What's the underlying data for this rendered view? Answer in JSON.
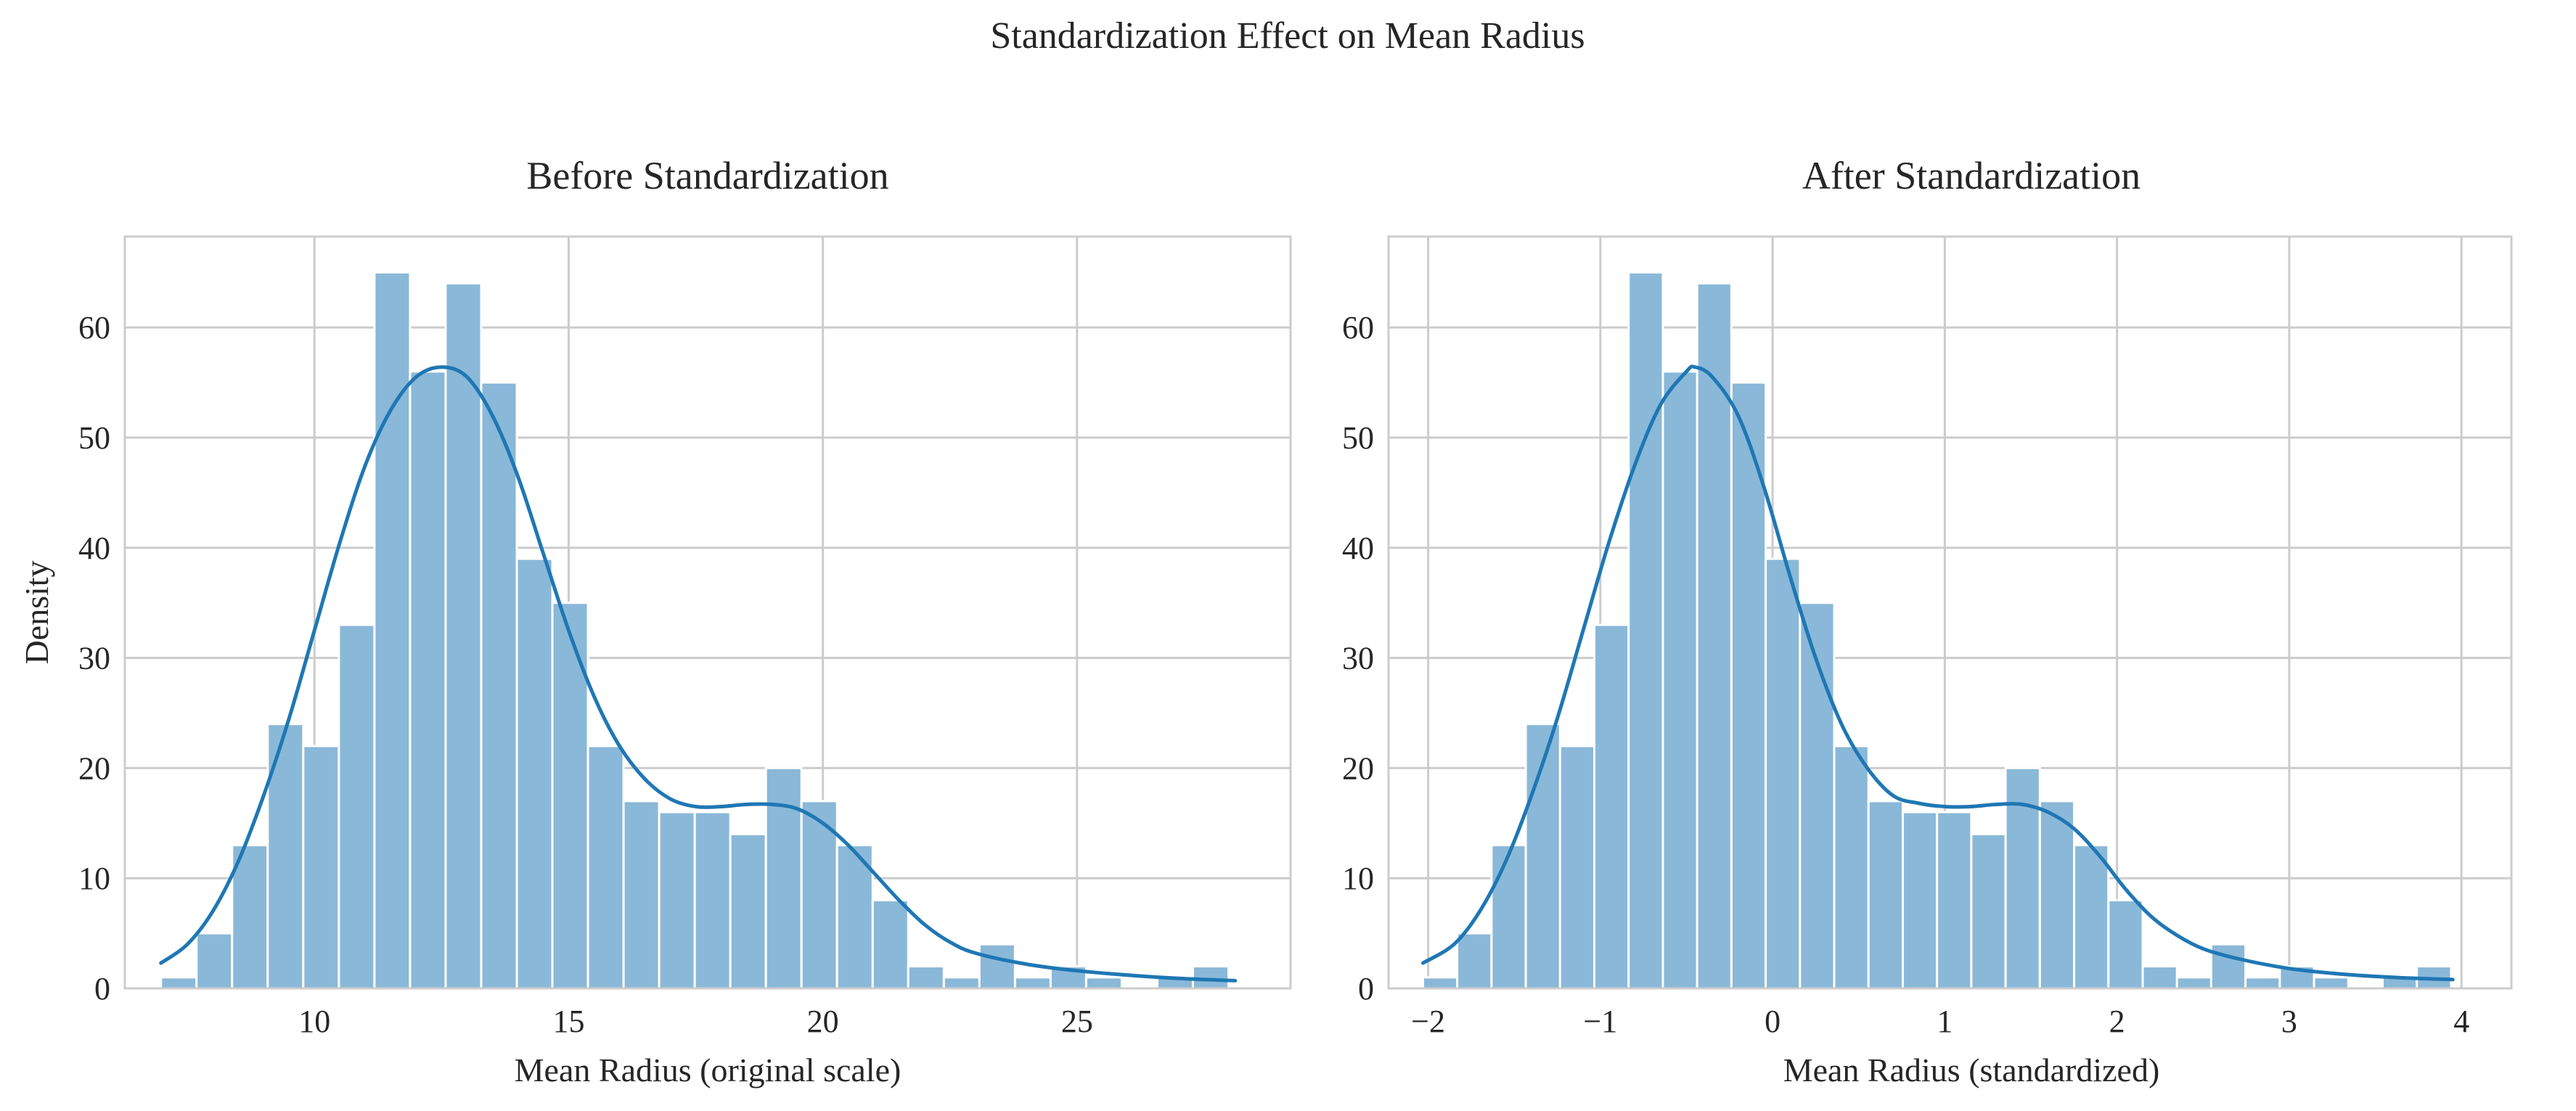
{
  "suptitle": "Standardization Effect on Mean Radius",
  "colors": {
    "bar_fill": "#8ab8d8",
    "bar_stroke": "#ffffff",
    "kde_line": "#1f77b4",
    "grid": "#cccccc",
    "axes_frame": "#cccccc",
    "background": "#ffffff"
  },
  "chart_data": [
    {
      "type": "histogram",
      "title": "Before Standardization",
      "xlabel": "Mean Radius (original scale)",
      "ylabel": "Density",
      "grid": true,
      "xlim": [
        6.27,
        29.2
      ],
      "ylim": [
        0,
        68.25
      ],
      "xticks": [
        10,
        15,
        20,
        25
      ],
      "xtick_labels": [
        "10",
        "15",
        "20",
        "25"
      ],
      "yticks": [
        0,
        10,
        20,
        30,
        40,
        50,
        60
      ],
      "ytick_labels": [
        "0",
        "10",
        "20",
        "30",
        "40",
        "50",
        "60"
      ],
      "bin_start": 6.98,
      "bin_width": 0.7,
      "counts": [
        1,
        5,
        13,
        24,
        22,
        33,
        65,
        56,
        64,
        55,
        39,
        35,
        22,
        17,
        16,
        16,
        14,
        20,
        17,
        13,
        8,
        2,
        1,
        4,
        1,
        2,
        1,
        0,
        1,
        2
      ],
      "kde": {
        "x": [
          6.98,
          7.5,
          8.0,
          8.5,
          9.0,
          9.5,
          10.0,
          10.5,
          11.0,
          11.5,
          12.0,
          12.5,
          13.0,
          13.5,
          14.0,
          14.5,
          15.0,
          15.5,
          16.0,
          16.5,
          17.0,
          17.5,
          18.0,
          18.5,
          19.0,
          19.5,
          20.0,
          20.5,
          21.0,
          21.5,
          22.0,
          22.5,
          23.0,
          24.0,
          25.0,
          26.0,
          27.0,
          28.11
        ],
        "y": [
          2.3,
          4.0,
          7.0,
          11.5,
          17.5,
          24.5,
          32.5,
          40.5,
          47.5,
          52.5,
          55.5,
          56.4,
          55.5,
          52.0,
          46.5,
          39.5,
          32.5,
          26.5,
          22.0,
          19.0,
          17.2,
          16.5,
          16.5,
          16.7,
          16.7,
          16.3,
          15.0,
          13.0,
          10.5,
          8.0,
          5.8,
          4.2,
          3.2,
          2.2,
          1.6,
          1.2,
          0.9,
          0.7
        ]
      }
    },
    {
      "type": "histogram",
      "title": "After Standardization",
      "xlabel": "Mean Radius (standardized)",
      "ylabel": "",
      "grid": true,
      "xlim": [
        -2.23,
        4.29
      ],
      "ylim": [
        0,
        68.25
      ],
      "xticks": [
        -2,
        -1,
        0,
        1,
        2,
        3,
        4
      ],
      "xtick_labels": [
        "−2",
        "−1",
        "0",
        "1",
        "2",
        "3",
        "4"
      ],
      "yticks": [
        0,
        10,
        20,
        30,
        40,
        50,
        60
      ],
      "ytick_labels": [
        "0",
        "10",
        "20",
        "30",
        "40",
        "50",
        "60"
      ],
      "bin_start": -2.03,
      "bin_width": 0.199,
      "counts": [
        1,
        5,
        13,
        24,
        22,
        33,
        65,
        56,
        64,
        55,
        39,
        35,
        22,
        17,
        16,
        16,
        14,
        20,
        17,
        13,
        8,
        2,
        1,
        4,
        1,
        2,
        1,
        0,
        1,
        2
      ],
      "kde": {
        "x": [
          -2.03,
          -1.85,
          -1.7,
          -1.55,
          -1.4,
          -1.25,
          -1.1,
          -0.95,
          -0.8,
          -0.65,
          -0.5,
          -0.45,
          -0.35,
          -0.2,
          -0.05,
          0.1,
          0.25,
          0.4,
          0.55,
          0.7,
          0.85,
          1.0,
          1.15,
          1.3,
          1.45,
          1.6,
          1.75,
          1.9,
          2.05,
          2.2,
          2.35,
          2.5,
          2.7,
          3.0,
          3.3,
          3.6,
          3.95
        ],
        "y": [
          2.3,
          4.0,
          7.0,
          11.5,
          17.5,
          24.5,
          32.5,
          40.5,
          47.5,
          53.0,
          56.0,
          56.4,
          55.5,
          52.0,
          45.5,
          37.5,
          30.0,
          24.0,
          20.0,
          17.5,
          16.8,
          16.5,
          16.5,
          16.7,
          16.7,
          16.0,
          14.5,
          12.0,
          9.0,
          6.5,
          4.8,
          3.6,
          2.7,
          1.8,
          1.3,
          1.0,
          0.8
        ]
      }
    }
  ]
}
